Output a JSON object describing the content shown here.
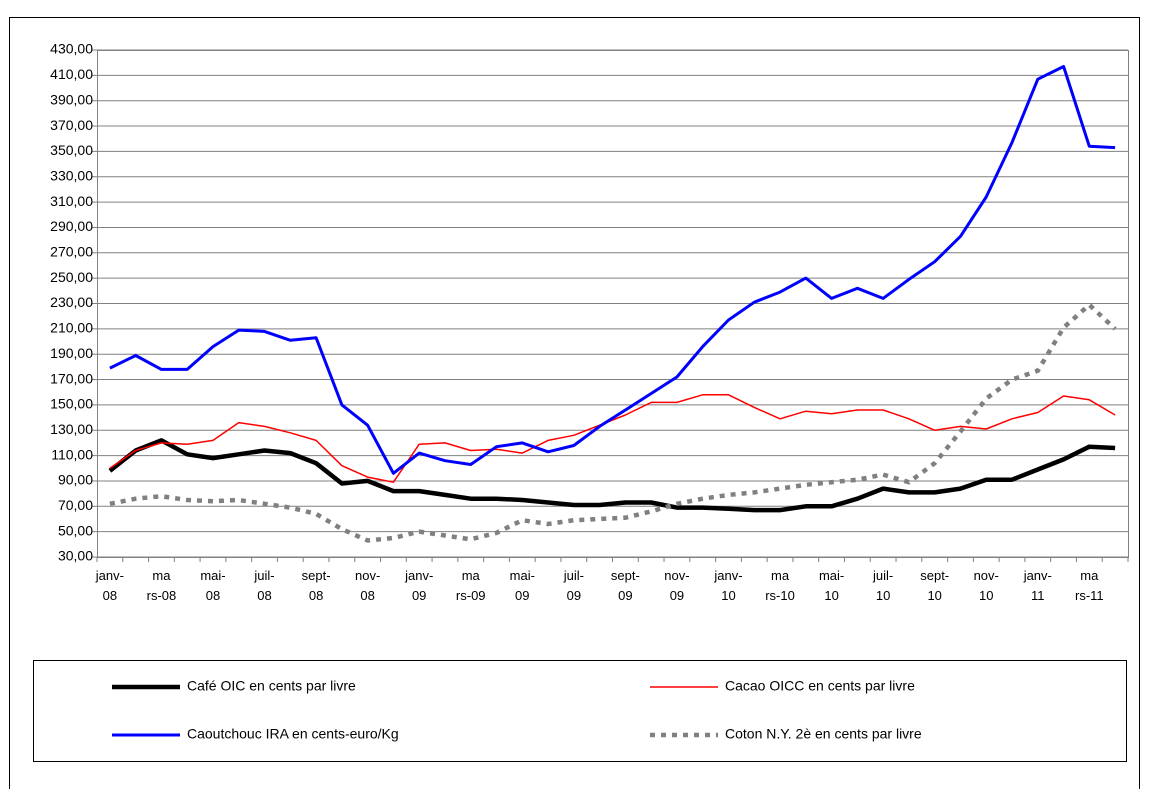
{
  "chart_data": {
    "type": "line",
    "categories": [
      "janv-08",
      null,
      "ma rs-08",
      null,
      "mai-08",
      null,
      "juil-08",
      null,
      "sept-08",
      null,
      "nov-08",
      null,
      "janv-09",
      null,
      "ma rs-09",
      null,
      "mai-09",
      null,
      "juil-09",
      null,
      "sept-09",
      null,
      "nov-09",
      null,
      "janv-10",
      null,
      "ma rs-10",
      null,
      "mai-10",
      null,
      "juil-10",
      null,
      "sept-10",
      null,
      "nov-10",
      null,
      "janv-11",
      null,
      "ma rs-11",
      null
    ],
    "ylim": [
      30,
      430
    ],
    "yticks": [
      {
        "value": 30,
        "label": "30,00"
      },
      {
        "value": 50,
        "label": "50,00"
      },
      {
        "value": 70,
        "label": "70,00"
      },
      {
        "value": 90,
        "label": "90,00"
      },
      {
        "value": 110,
        "label": "110,00"
      },
      {
        "value": 130,
        "label": "130,00"
      },
      {
        "value": 150,
        "label": "150,00"
      },
      {
        "value": 170,
        "label": "170,00"
      },
      {
        "value": 190,
        "label": "190,00"
      },
      {
        "value": 210,
        "label": "210,00"
      },
      {
        "value": 230,
        "label": "230,00"
      },
      {
        "value": 250,
        "label": "250,00"
      },
      {
        "value": 270,
        "label": "270,00"
      },
      {
        "value": 290,
        "label": "290,00"
      },
      {
        "value": 310,
        "label": "310,00"
      },
      {
        "value": 330,
        "label": "330,00"
      },
      {
        "value": 350,
        "label": "350,00"
      },
      {
        "value": 370,
        "label": "370,00"
      },
      {
        "value": 390,
        "label": "390,00"
      },
      {
        "value": 410,
        "label": "410,00"
      },
      {
        "value": 430,
        "label": "430,00"
      }
    ],
    "grid": true,
    "series": [
      {
        "name": "Café  OIC en cents par livre",
        "color": "#000000",
        "values": [
          98,
          114,
          122,
          111,
          108,
          111,
          114,
          112,
          104,
          88,
          90,
          82,
          82,
          79,
          76,
          76,
          75,
          73,
          71,
          71,
          73,
          73,
          69,
          69,
          68,
          67,
          67,
          70,
          70,
          76,
          84,
          81,
          81,
          84,
          91,
          91,
          99,
          107,
          117,
          116
        ]
      },
      {
        "name": "Cacao OICC en cents par livre",
        "color": "#ff0000",
        "values": [
          100,
          114,
          120,
          119,
          122,
          136,
          133,
          128,
          122,
          102,
          93,
          89,
          119,
          120,
          114,
          115,
          112,
          122,
          126,
          134,
          142,
          152,
          152,
          158,
          158,
          148,
          139,
          145,
          143,
          146,
          146,
          139,
          130,
          133,
          131,
          139,
          144,
          157,
          154,
          142
        ]
      },
      {
        "name": "Caoutchouc IRA en cents-euro/Kg",
        "color": "#0000ff",
        "values": [
          179,
          189,
          178,
          178,
          196,
          209,
          208,
          201,
          203,
          150,
          134,
          96,
          112,
          106,
          103,
          117,
          120,
          113,
          118,
          133,
          146,
          159,
          172,
          196,
          217,
          231,
          239,
          250,
          234,
          242,
          234,
          249,
          263,
          283,
          314,
          357,
          407,
          417,
          354,
          353
        ]
      },
      {
        "name": "Coton N.Y. 2è en cents par livre",
        "color": "#808080",
        "dashed": true,
        "values": [
          72,
          76,
          78,
          75,
          74,
          75,
          72,
          69,
          64,
          52,
          43,
          45,
          50,
          47,
          44,
          49,
          59,
          56,
          59,
          60,
          61,
          66,
          72,
          76,
          79,
          81,
          84,
          87,
          89,
          91,
          95,
          89,
          104,
          129,
          155,
          170,
          177,
          211,
          229,
          210
        ]
      }
    ]
  }
}
